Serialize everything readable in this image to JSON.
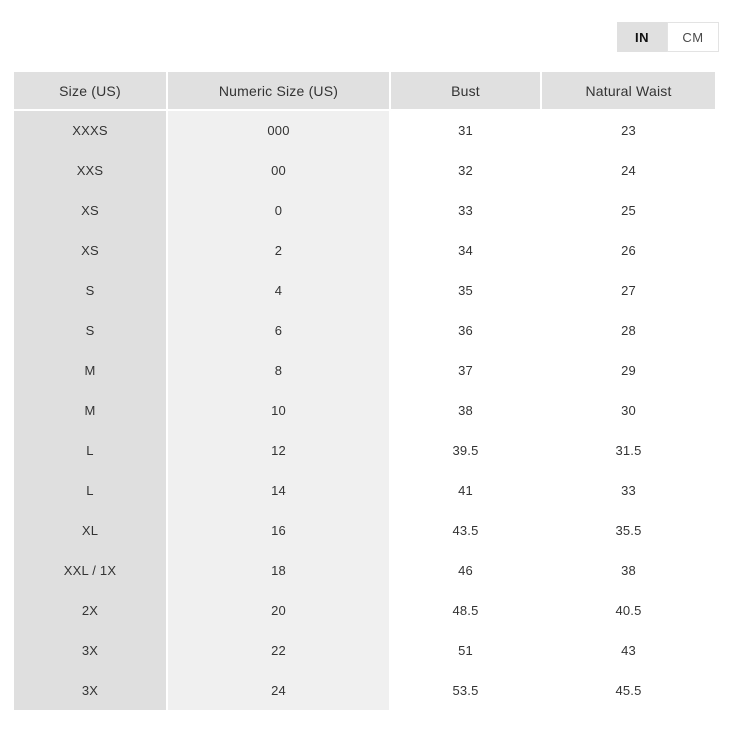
{
  "unit_toggle": {
    "selected": "IN",
    "options": [
      {
        "label": "IN"
      },
      {
        "label": "CM"
      }
    ]
  },
  "table": {
    "columns": [
      "Size (US)",
      "Numeric Size (US)",
      "Bust",
      "Natural Waist"
    ],
    "rows": [
      [
        "XXXS",
        "000",
        "31",
        "23"
      ],
      [
        "XXS",
        "00",
        "32",
        "24"
      ],
      [
        "XS",
        "0",
        "33",
        "25"
      ],
      [
        "XS",
        "2",
        "34",
        "26"
      ],
      [
        "S",
        "4",
        "35",
        "27"
      ],
      [
        "S",
        "6",
        "36",
        "28"
      ],
      [
        "M",
        "8",
        "37",
        "29"
      ],
      [
        "M",
        "10",
        "38",
        "30"
      ],
      [
        "L",
        "12",
        "39.5",
        "31.5"
      ],
      [
        "L",
        "14",
        "41",
        "33"
      ],
      [
        "XL",
        "16",
        "43.5",
        "35.5"
      ],
      [
        "XXL / 1X",
        "18",
        "46",
        "38"
      ],
      [
        "2X",
        "20",
        "48.5",
        "40.5"
      ],
      [
        "3X",
        "22",
        "51",
        "43"
      ],
      [
        "3X",
        "24",
        "53.5",
        "45.5"
      ]
    ]
  },
  "colors": {
    "header_bg": "#e0e0e0",
    "size_column_bg": "#dfdfdf",
    "numeric_column_bg": "#f0f0f0",
    "measure_column_bg": "#ffffff",
    "selected_toggle_bg": "#e0e0e0",
    "unselected_toggle_border": "#e3e3e3",
    "text": "#333333"
  }
}
